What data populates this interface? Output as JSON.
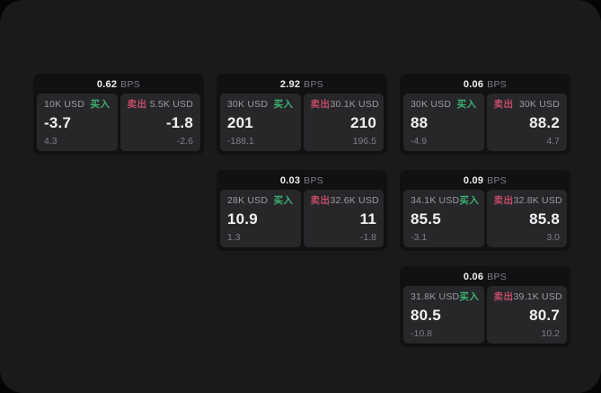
{
  "theme": {
    "page_bg": "#050505",
    "panel_bg": "#1a1a1c",
    "card_bg": "#111113",
    "subcard_bg": "#27272a",
    "buy": "#3bb273",
    "sell": "#c14b68",
    "text_primary": "#f0f0f2",
    "text_secondary": "#9b9b9f",
    "text_dim": "#7e7e83"
  },
  "labels": {
    "bps": "BPS",
    "buy": "买入",
    "sell": "卖出"
  },
  "cards": [
    {
      "col": 0,
      "row": 0,
      "spread_bps": "0.62",
      "buy": {
        "amount": "10K USD",
        "price": "-3.7",
        "change": "4.3"
      },
      "sell": {
        "amount": "5.5K USD",
        "price": "-1.8",
        "change": "-2.6"
      }
    },
    {
      "col": 1,
      "row": 0,
      "spread_bps": "2.92",
      "buy": {
        "amount": "30K USD",
        "price": "201",
        "change": "-188.1"
      },
      "sell": {
        "amount": "30.1K USD",
        "price": "210",
        "change": "196.5"
      }
    },
    {
      "col": 2,
      "row": 0,
      "spread_bps": "0.06",
      "buy": {
        "amount": "30K USD",
        "price": "88",
        "change": "-4.9"
      },
      "sell": {
        "amount": "30K USD",
        "price": "88.2",
        "change": "4.7"
      }
    },
    {
      "col": 1,
      "row": 1,
      "spread_bps": "0.03",
      "buy": {
        "amount": "28K USD",
        "price": "10.9",
        "change": "1.3"
      },
      "sell": {
        "amount": "32.6K USD",
        "price": "11",
        "change": "-1.8"
      }
    },
    {
      "col": 2,
      "row": 1,
      "spread_bps": "0.09",
      "buy": {
        "amount": "34.1K USD",
        "price": "85.5",
        "change": "-3.1"
      },
      "sell": {
        "amount": "32.8K USD",
        "price": "85.8",
        "change": "3.0"
      }
    },
    {
      "col": 2,
      "row": 2,
      "spread_bps": "0.06",
      "buy": {
        "amount": "31.8K USD",
        "price": "80.5",
        "change": "-10.8"
      },
      "sell": {
        "amount": "39.1K USD",
        "price": "80.7",
        "change": "10.2"
      }
    }
  ]
}
